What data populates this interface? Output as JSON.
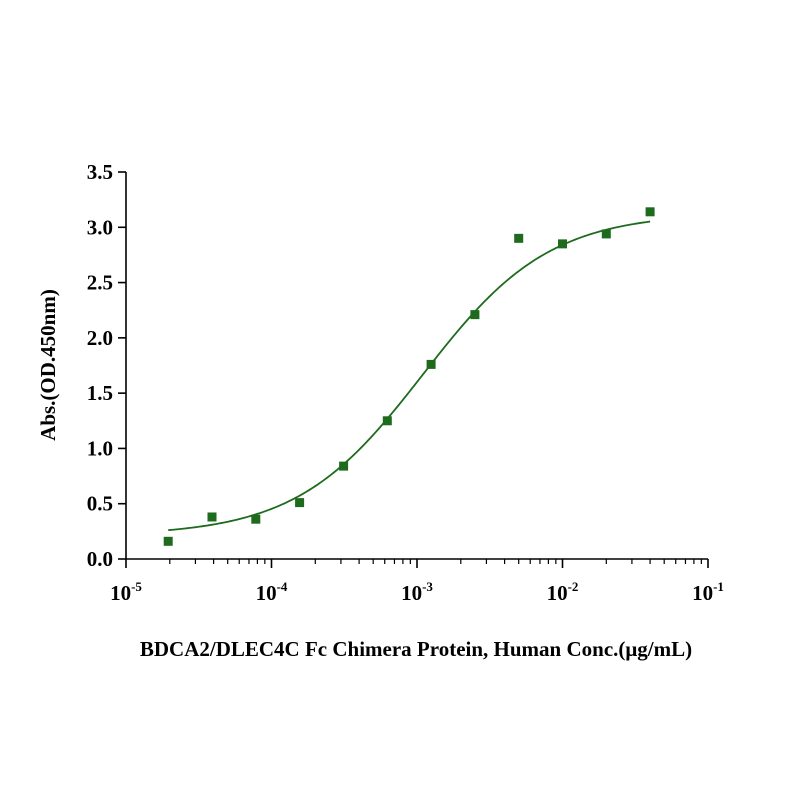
{
  "chart_data": {
    "type": "scatter",
    "title": "",
    "xlabel": "BDCA2/DLEC4C Fc Chimera Protein, Human  Conc.(μg/mL)",
    "ylabel": "Abs.(OD.450nm)",
    "x_scale": "log",
    "xlim": [
      1e-05,
      0.1
    ],
    "ylim": [
      0,
      3.5
    ],
    "x_ticks": [
      {
        "base": "10",
        "exp": "-5"
      },
      {
        "base": "10",
        "exp": "-4"
      },
      {
        "base": "10",
        "exp": "-3"
      },
      {
        "base": "10",
        "exp": "-2"
      },
      {
        "base": "10",
        "exp": "-1"
      }
    ],
    "y_ticks": [
      "0.0",
      "0.5",
      "1.0",
      "1.5",
      "2.0",
      "2.5",
      "3.0",
      "3.5"
    ],
    "grid": false,
    "legend": "none",
    "color": "#1e6b1e",
    "series": [
      {
        "x": [
          1.95e-05,
          3.9e-05,
          7.8e-05,
          0.000156,
          0.000313,
          0.000625,
          0.00125,
          0.0025,
          0.005,
          0.01,
          0.02,
          0.04
        ],
        "y": [
          0.16,
          0.38,
          0.36,
          0.51,
          0.84,
          1.25,
          1.76,
          2.21,
          2.9,
          2.85,
          2.94,
          3.14
        ]
      }
    ],
    "fit_curve": {
      "model": "4PL",
      "bottom": 0.21,
      "top": 3.13,
      "ec50": 0.0011,
      "hill": 1.0,
      "x_range": [
        1.95e-05,
        0.04
      ]
    }
  }
}
